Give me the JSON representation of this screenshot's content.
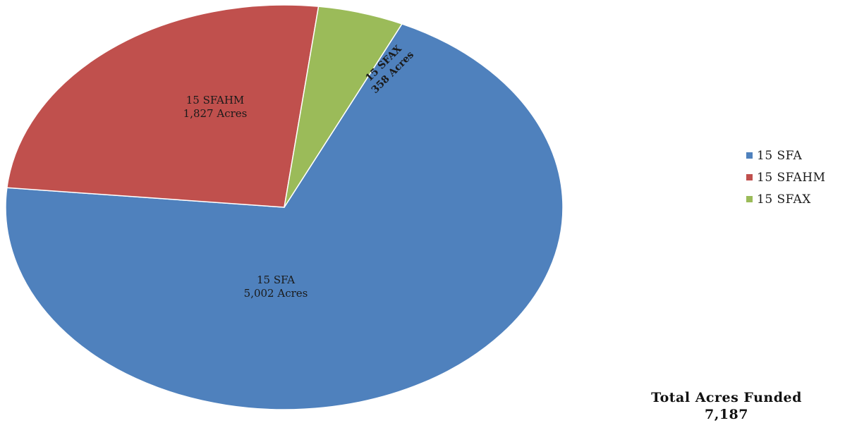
{
  "chart_data": {
    "type": "pie",
    "categories": [
      "15 SFA",
      "15 SFAHM",
      "15 SFAX"
    ],
    "values": [
      5002,
      1827,
      358
    ],
    "unit": "Acres",
    "slice_labels": [
      {
        "name": "15 SFA",
        "value_text": "5,002 Acres"
      },
      {
        "name": "15 SFAHM",
        "value_text": "1,827 Acres"
      },
      {
        "name": "15 SFAX",
        "value_text": "358 Acres"
      }
    ],
    "colors": [
      "#4f81bd",
      "#c0504d",
      "#9bbb59"
    ],
    "legend": {
      "position": "right",
      "items": [
        {
          "label": "15 SFA",
          "color": "#4f81bd"
        },
        {
          "label": "15 SFAHM",
          "color": "#c0504d"
        },
        {
          "label": "15 SFAX",
          "color": "#9bbb59"
        }
      ]
    },
    "annotation": {
      "title": "Total Acres Funded",
      "value": "7,187"
    }
  }
}
